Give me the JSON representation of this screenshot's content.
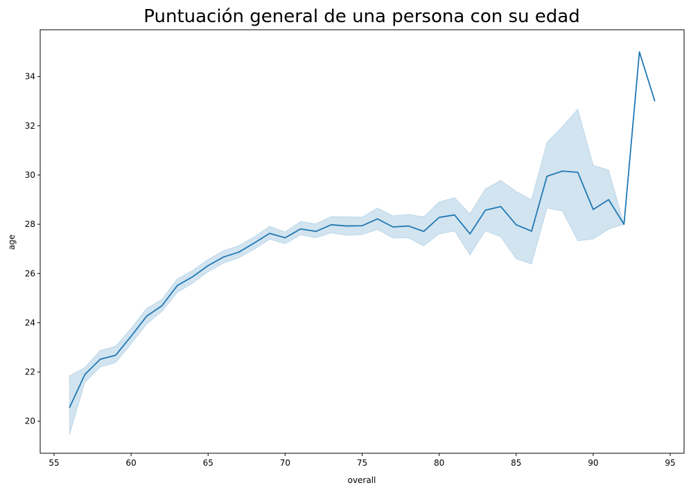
{
  "chart_data": {
    "type": "line",
    "title": "Puntuación general de una persona con su edad",
    "xlabel": "overall",
    "ylabel": "age",
    "xlim": [
      54.1,
      95.9
    ],
    "ylim": [
      18.7,
      35.9
    ],
    "xticks": [
      55,
      60,
      65,
      70,
      75,
      80,
      85,
      90,
      95
    ],
    "yticks": [
      20,
      22,
      24,
      26,
      28,
      30,
      32,
      34
    ],
    "grid": false,
    "colors": {
      "line": "#1f77b4",
      "band": "#1f77b4"
    },
    "series": [
      {
        "x": [
          56,
          57,
          58,
          59,
          60,
          61,
          62,
          63,
          64,
          65,
          66,
          67,
          68,
          69,
          70,
          71,
          72,
          73,
          74,
          75,
          76,
          77,
          78,
          79,
          80,
          81,
          82,
          83,
          84,
          85,
          86,
          87,
          88,
          89,
          90,
          91,
          92,
          93,
          94
        ],
        "values": [
          20.55,
          21.9,
          22.52,
          22.68,
          23.45,
          24.26,
          24.69,
          25.51,
          25.87,
          26.32,
          26.67,
          26.87,
          27.24,
          27.63,
          27.45,
          27.81,
          27.71,
          27.98,
          27.93,
          27.94,
          28.22,
          27.89,
          27.93,
          27.71,
          28.28,
          28.38,
          27.61,
          28.57,
          28.72,
          27.98,
          27.72,
          29.95,
          30.16,
          30.11,
          28.6,
          29.0,
          28.0,
          35.0,
          33.0
        ],
        "ci_lower": [
          19.45,
          21.58,
          22.2,
          22.38,
          23.14,
          23.94,
          24.46,
          25.23,
          25.61,
          26.07,
          26.42,
          26.64,
          26.99,
          27.39,
          27.21,
          27.57,
          27.45,
          27.65,
          27.55,
          27.58,
          27.79,
          27.44,
          27.45,
          27.12,
          27.61,
          27.73,
          26.75,
          27.74,
          27.49,
          26.59,
          26.39,
          28.66,
          28.54,
          27.33,
          27.4,
          27.8,
          28.0,
          35.0,
          33.0
        ],
        "ci_upper": [
          21.84,
          22.19,
          22.88,
          23.05,
          23.77,
          24.58,
          24.95,
          25.78,
          26.13,
          26.57,
          26.93,
          27.13,
          27.49,
          27.92,
          27.69,
          28.11,
          28.02,
          28.31,
          28.3,
          28.29,
          28.66,
          28.34,
          28.4,
          28.3,
          28.91,
          29.08,
          28.42,
          29.44,
          29.78,
          29.33,
          29.0,
          31.33,
          31.97,
          32.67,
          30.4,
          30.2,
          28.0,
          35.0,
          33.0
        ]
      }
    ]
  }
}
